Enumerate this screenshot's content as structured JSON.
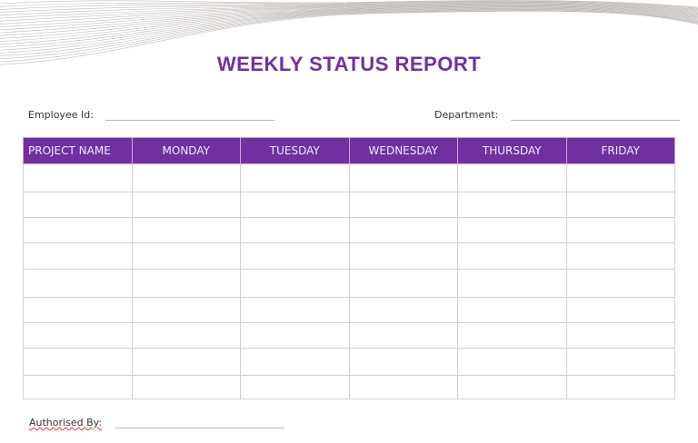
{
  "title": "WEEKLY STATUS REPORT",
  "fields": {
    "employee_id_label": "Employee Id:",
    "department_label": "Department:",
    "authorised_by_label": "Authorised By:"
  },
  "table": {
    "columns": [
      "PROJECT NAME",
      "MONDAY",
      "TUESDAY",
      "WEDNESDAY",
      "THURSDAY",
      "FRIDAY"
    ],
    "row_count": 9
  },
  "colors": {
    "accent": "#7030a0"
  }
}
